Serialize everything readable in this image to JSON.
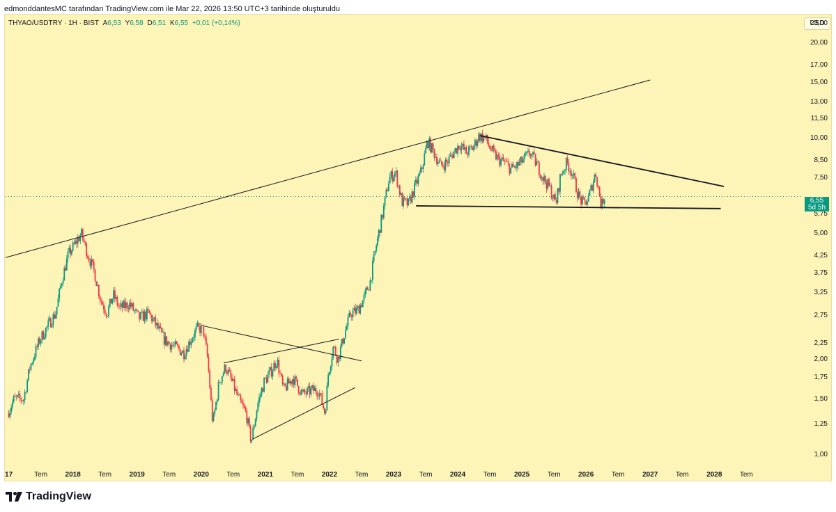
{
  "header": {
    "credit": "edmonddantesMC tarafından TradingView.com ile Mar 22, 2026 13:50 UTC+3 tarihinde oluşturuldu"
  },
  "legend": {
    "symbol": "THYAO/USDTRY · 1H · BIST",
    "open_label": "A",
    "open": "6,53",
    "high_label": "Y",
    "high": "6,58",
    "low_label": "D",
    "low": "6,51",
    "close_label": "K",
    "close": "6,55",
    "change": "+0,01 (+0,14%)"
  },
  "currency_button": "USD",
  "price_tag": {
    "price": "6,55",
    "countdown": "5d 5h"
  },
  "footer": {
    "brand": "TradingView",
    "logo_icon": "tradingview-logo-icon"
  },
  "colors": {
    "background": "#fdf4b8",
    "up": "#089981",
    "down": "#f23645",
    "trendline": "#131722"
  },
  "chart_data": {
    "type": "candlestick",
    "scale": "log",
    "ylim": [
      0.93,
      24.5
    ],
    "xlim": [
      2016.95,
      2029.3
    ],
    "y_ticks": [
      {
        "v": 23,
        "label": "23,00"
      },
      {
        "v": 20,
        "label": "20,00"
      },
      {
        "v": 17,
        "label": "17,00"
      },
      {
        "v": 15,
        "label": "15,00"
      },
      {
        "v": 13,
        "label": "13,00"
      },
      {
        "v": 11.5,
        "label": "11,50"
      },
      {
        "v": 10,
        "label": "10,00"
      },
      {
        "v": 8.5,
        "label": "8,50"
      },
      {
        "v": 7.5,
        "label": "7,50"
      },
      {
        "v": 5.75,
        "label": "5,75"
      },
      {
        "v": 5,
        "label": "5,00"
      },
      {
        "v": 4.25,
        "label": "4,25"
      },
      {
        "v": 3.75,
        "label": "3,75"
      },
      {
        "v": 3.25,
        "label": "3,25"
      },
      {
        "v": 2.75,
        "label": "2,75"
      },
      {
        "v": 2.25,
        "label": "2,25"
      },
      {
        "v": 2,
        "label": "2,00"
      },
      {
        "v": 1.75,
        "label": "1,75"
      },
      {
        "v": 1.5,
        "label": "1,50"
      },
      {
        "v": 1.25,
        "label": "1,25"
      },
      {
        "v": 1,
        "label": "1,00"
      }
    ],
    "x_ticks": [
      {
        "t": 2017.0,
        "label": "17",
        "bold": true
      },
      {
        "t": 2017.5,
        "label": "Tem",
        "bold": false
      },
      {
        "t": 2018.0,
        "label": "2018",
        "bold": true
      },
      {
        "t": 2018.5,
        "label": "Tem",
        "bold": false
      },
      {
        "t": 2019.0,
        "label": "2019",
        "bold": true
      },
      {
        "t": 2019.5,
        "label": "Tem",
        "bold": false
      },
      {
        "t": 2020.0,
        "label": "2020",
        "bold": true
      },
      {
        "t": 2020.5,
        "label": "Tem",
        "bold": false
      },
      {
        "t": 2021.0,
        "label": "2021",
        "bold": true
      },
      {
        "t": 2021.5,
        "label": "Tem",
        "bold": false
      },
      {
        "t": 2022.0,
        "label": "2022",
        "bold": true
      },
      {
        "t": 2022.5,
        "label": "Tem",
        "bold": false
      },
      {
        "t": 2023.0,
        "label": "2023",
        "bold": true
      },
      {
        "t": 2023.5,
        "label": "Tem",
        "bold": false
      },
      {
        "t": 2024.0,
        "label": "2024",
        "bold": true
      },
      {
        "t": 2024.5,
        "label": "Tem",
        "bold": false
      },
      {
        "t": 2025.0,
        "label": "2025",
        "bold": true
      },
      {
        "t": 2025.5,
        "label": "Tem",
        "bold": false
      },
      {
        "t": 2026.0,
        "label": "2026",
        "bold": true
      },
      {
        "t": 2026.5,
        "label": "Tem",
        "bold": false
      },
      {
        "t": 2027.0,
        "label": "2027",
        "bold": true
      },
      {
        "t": 2027.5,
        "label": "Tem",
        "bold": false
      },
      {
        "t": 2028.0,
        "label": "2028",
        "bold": true
      },
      {
        "t": 2028.5,
        "label": "Tem",
        "bold": false
      }
    ],
    "last_price": 6.55,
    "price_path": [
      [
        2017.0,
        1.35
      ],
      [
        2017.1,
        1.5
      ],
      [
        2017.25,
        1.5
      ],
      [
        2017.35,
        1.9
      ],
      [
        2017.5,
        2.3
      ],
      [
        2017.65,
        2.6
      ],
      [
        2017.75,
        2.8
      ],
      [
        2017.85,
        3.6
      ],
      [
        2017.95,
        4.3
      ],
      [
        2018.07,
        4.7
      ],
      [
        2018.15,
        5.0
      ],
      [
        2018.25,
        4.3
      ],
      [
        2018.35,
        3.8
      ],
      [
        2018.45,
        3.1
      ],
      [
        2018.55,
        2.8
      ],
      [
        2018.65,
        3.2
      ],
      [
        2018.75,
        2.9
      ],
      [
        2018.9,
        3.0
      ],
      [
        2019.05,
        2.7
      ],
      [
        2019.2,
        2.8
      ],
      [
        2019.3,
        2.6
      ],
      [
        2019.45,
        2.3
      ],
      [
        2019.6,
        2.2
      ],
      [
        2019.75,
        2.1
      ],
      [
        2019.85,
        2.3
      ],
      [
        2019.95,
        2.5
      ],
      [
        2020.05,
        2.5
      ],
      [
        2020.12,
        2.0
      ],
      [
        2020.2,
        1.25
      ],
      [
        2020.3,
        1.7
      ],
      [
        2020.4,
        1.9
      ],
      [
        2020.5,
        1.7
      ],
      [
        2020.6,
        1.5
      ],
      [
        2020.72,
        1.35
      ],
      [
        2020.8,
        1.1
      ],
      [
        2020.9,
        1.45
      ],
      [
        2021.0,
        1.7
      ],
      [
        2021.12,
        1.85
      ],
      [
        2021.2,
        2.0
      ],
      [
        2021.3,
        1.6
      ],
      [
        2021.45,
        1.75
      ],
      [
        2021.6,
        1.55
      ],
      [
        2021.75,
        1.6
      ],
      [
        2021.85,
        1.6
      ],
      [
        2021.95,
        1.35
      ],
      [
        2022.0,
        1.8
      ],
      [
        2022.08,
        2.2
      ],
      [
        2022.15,
        2.0
      ],
      [
        2022.25,
        2.4
      ],
      [
        2022.35,
        2.8
      ],
      [
        2022.45,
        2.85
      ],
      [
        2022.55,
        3.1
      ],
      [
        2022.65,
        3.5
      ],
      [
        2022.75,
        4.6
      ],
      [
        2022.85,
        5.8
      ],
      [
        2022.95,
        7.5
      ],
      [
        2023.05,
        7.8
      ],
      [
        2023.15,
        6.3
      ],
      [
        2023.25,
        6.2
      ],
      [
        2023.35,
        7.0
      ],
      [
        2023.45,
        7.9
      ],
      [
        2023.55,
        9.8
      ],
      [
        2023.65,
        9.0
      ],
      [
        2023.75,
        8.2
      ],
      [
        2023.85,
        8.4
      ],
      [
        2023.95,
        9.0
      ],
      [
        2024.05,
        9.6
      ],
      [
        2024.15,
        9.0
      ],
      [
        2024.25,
        9.3
      ],
      [
        2024.35,
        10.2
      ],
      [
        2024.45,
        10.0
      ],
      [
        2024.55,
        9.1
      ],
      [
        2024.65,
        8.6
      ],
      [
        2024.75,
        8.4
      ],
      [
        2024.85,
        8.0
      ],
      [
        2024.95,
        8.2
      ],
      [
        2025.05,
        8.6
      ],
      [
        2025.15,
        9.0
      ],
      [
        2025.25,
        8.3
      ],
      [
        2025.35,
        7.5
      ],
      [
        2025.45,
        7.0
      ],
      [
        2025.55,
        6.2
      ],
      [
        2025.62,
        7.6
      ],
      [
        2025.72,
        8.4
      ],
      [
        2025.8,
        7.8
      ],
      [
        2025.9,
        6.6
      ],
      [
        2025.97,
        6.2
      ],
      [
        2026.05,
        6.4
      ],
      [
        2026.12,
        7.2
      ],
      [
        2026.17,
        7.8
      ],
      [
        2026.22,
        6.8
      ],
      [
        2026.26,
        6.1
      ],
      [
        2026.3,
        6.55
      ]
    ],
    "trendlines": [
      {
        "from": [
          2016.95,
          4.2
        ],
        "to": [
          2027.0,
          15.3
        ]
      },
      {
        "from": [
          2023.35,
          6.12
        ],
        "to": [
          2028.1,
          6.0
        ]
      },
      {
        "from": [
          2024.35,
          10.2
        ],
        "to": [
          2028.15,
          7.05
        ]
      },
      {
        "from": [
          2020.05,
          2.55
        ],
        "to": [
          2022.5,
          1.98
        ]
      },
      {
        "from": [
          2020.35,
          1.95
        ],
        "to": [
          2022.15,
          2.32
        ]
      },
      {
        "from": [
          2020.8,
          1.12
        ],
        "to": [
          2022.4,
          1.63
        ]
      }
    ]
  }
}
